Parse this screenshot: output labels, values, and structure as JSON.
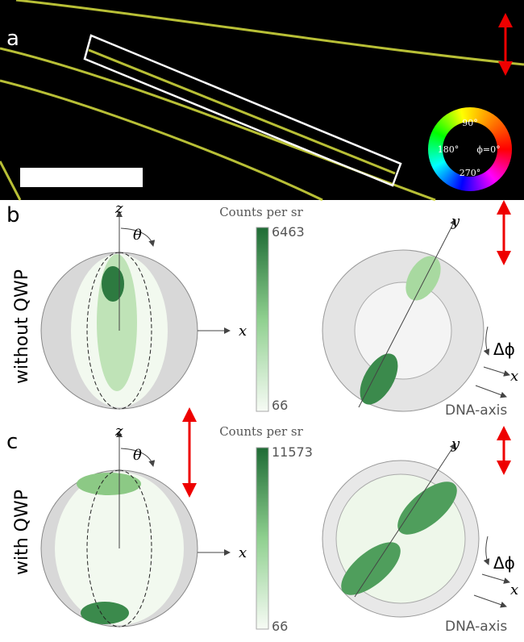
{
  "panels": [
    {
      "label": "a",
      "color_wheel": [
        "90°",
        "180°",
        "ϕ=0°",
        "270°"
      ]
    },
    {
      "label": "b",
      "z": "z",
      "theta": "θ",
      "x": "x",
      "condition": "without QWP",
      "colorbar_title": "Counts per sr",
      "colorbar_max": 6463,
      "colorbar_min": 66,
      "y": "y",
      "delta_phi": "Δϕ",
      "x2": "x",
      "dna_axis": "DNA-axis"
    },
    {
      "label": "c",
      "z": "z",
      "theta": "θ",
      "x": "x",
      "condition": "with QWP",
      "colorbar_title": "Counts per sr",
      "colorbar_max": 11573,
      "colorbar_min": 66,
      "y": "y",
      "delta_phi": "Δϕ",
      "x2": "x",
      "dna_axis": "DNA-axis"
    }
  ]
}
